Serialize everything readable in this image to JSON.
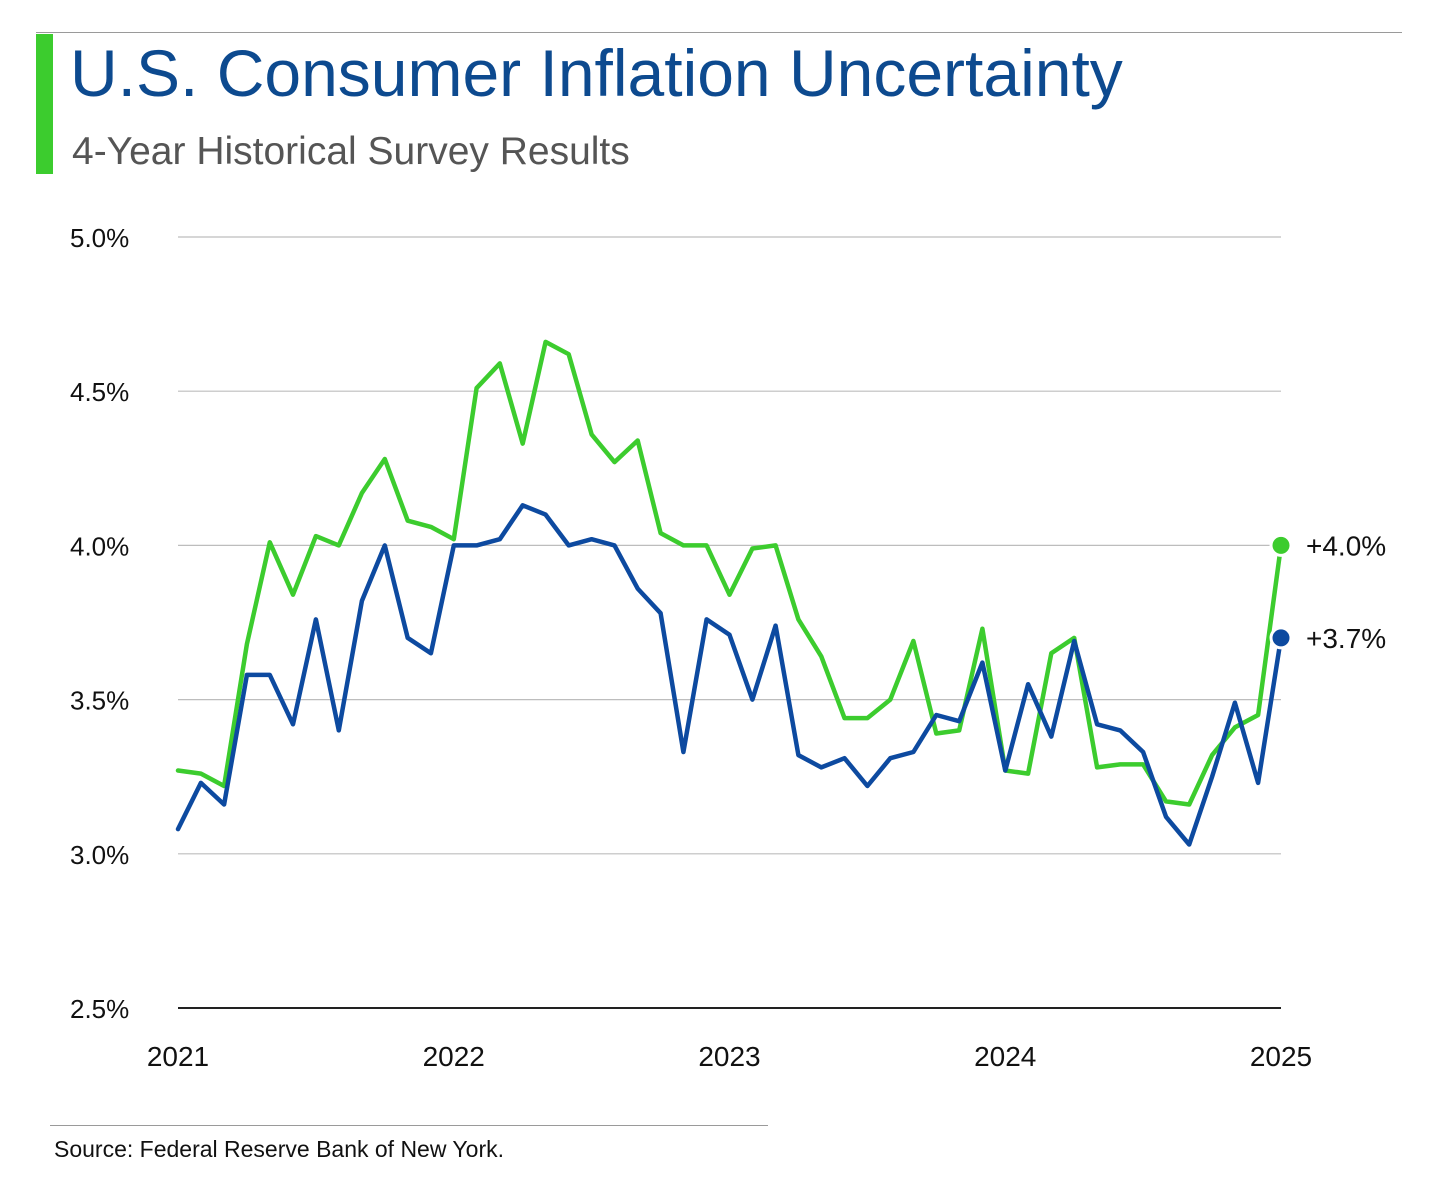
{
  "header": {
    "title": "U.S. Consumer Inflation Uncertainty",
    "subtitle": "4-Year Historical Survey Results"
  },
  "footer": {
    "source": "Source: Federal Reserve Bank of New York."
  },
  "colors": {
    "accent": "#3ccc2e",
    "title": "#0d4a8f",
    "green_series": "#3ccc2e",
    "blue_series": "#0d4aa0",
    "gridline": "#bdbdbd",
    "axis": "#222222"
  },
  "chart_data": {
    "type": "line",
    "xlim": [
      2021,
      2025
    ],
    "ylim": [
      2.5,
      5.0
    ],
    "x_ticks": [
      2021,
      2022,
      2023,
      2024,
      2025
    ],
    "x_tick_labels": [
      "2021",
      "2022",
      "2023",
      "2024",
      "2025"
    ],
    "y_ticks": [
      2.5,
      3.0,
      3.5,
      4.0,
      4.5,
      5.0
    ],
    "y_tick_labels": [
      "2.5%",
      "3.0%",
      "3.5%",
      "4.0%",
      "4.5%",
      "5.0%"
    ],
    "grid": true,
    "series": [
      {
        "color": "#3ccc2e",
        "end_label": "+4.0%",
        "x": [
          2021.0,
          2021.083,
          2021.167,
          2021.25,
          2021.333,
          2021.417,
          2021.5,
          2021.583,
          2021.667,
          2021.75,
          2021.833,
          2021.917,
          2022.0,
          2022.083,
          2022.167,
          2022.25,
          2022.333,
          2022.417,
          2022.5,
          2022.583,
          2022.667,
          2022.75,
          2022.833,
          2022.917,
          2023.0,
          2023.083,
          2023.167,
          2023.25,
          2023.333,
          2023.417,
          2023.5,
          2023.583,
          2023.667,
          2023.75,
          2023.833,
          2023.917,
          2024.0,
          2024.083,
          2024.167,
          2024.25,
          2024.333,
          2024.417,
          2024.5,
          2024.583,
          2024.667,
          2024.75,
          2024.833,
          2024.917,
          2025.0
        ],
        "values": [
          3.27,
          3.26,
          3.22,
          3.68,
          4.01,
          3.84,
          4.03,
          4.0,
          4.17,
          4.28,
          4.08,
          4.06,
          4.02,
          4.51,
          4.59,
          4.33,
          4.66,
          4.62,
          4.36,
          4.27,
          4.34,
          4.04,
          4.0,
          4.0,
          3.84,
          3.99,
          4.0,
          3.76,
          3.64,
          3.44,
          3.44,
          3.5,
          3.69,
          3.39,
          3.4,
          3.73,
          3.27,
          3.26,
          3.65,
          3.7,
          3.28,
          3.29,
          3.29,
          3.17,
          3.16,
          3.32,
          3.41,
          3.45,
          4.0
        ]
      },
      {
        "color": "#0d4aa0",
        "end_label": "+3.7%",
        "x": [
          2021.0,
          2021.083,
          2021.167,
          2021.25,
          2021.333,
          2021.417,
          2021.5,
          2021.583,
          2021.667,
          2021.75,
          2021.833,
          2021.917,
          2022.0,
          2022.083,
          2022.167,
          2022.25,
          2022.333,
          2022.417,
          2022.5,
          2022.583,
          2022.667,
          2022.75,
          2022.833,
          2022.917,
          2023.0,
          2023.083,
          2023.167,
          2023.25,
          2023.333,
          2023.417,
          2023.5,
          2023.583,
          2023.667,
          2023.75,
          2023.833,
          2023.917,
          2024.0,
          2024.083,
          2024.167,
          2024.25,
          2024.333,
          2024.417,
          2024.5,
          2024.583,
          2024.667,
          2024.75,
          2024.833,
          2024.917,
          2025.0
        ],
        "values": [
          3.08,
          3.23,
          3.16,
          3.58,
          3.58,
          3.42,
          3.76,
          3.4,
          3.82,
          4.0,
          3.7,
          3.65,
          4.0,
          4.0,
          4.02,
          4.13,
          4.1,
          4.0,
          4.02,
          4.0,
          3.86,
          3.78,
          3.33,
          3.76,
          3.71,
          3.5,
          3.74,
          3.32,
          3.28,
          3.31,
          3.22,
          3.31,
          3.33,
          3.45,
          3.43,
          3.62,
          3.27,
          3.55,
          3.38,
          3.69,
          3.42,
          3.4,
          3.33,
          3.12,
          3.03,
          3.25,
          3.49,
          3.23,
          3.7
        ]
      }
    ]
  }
}
